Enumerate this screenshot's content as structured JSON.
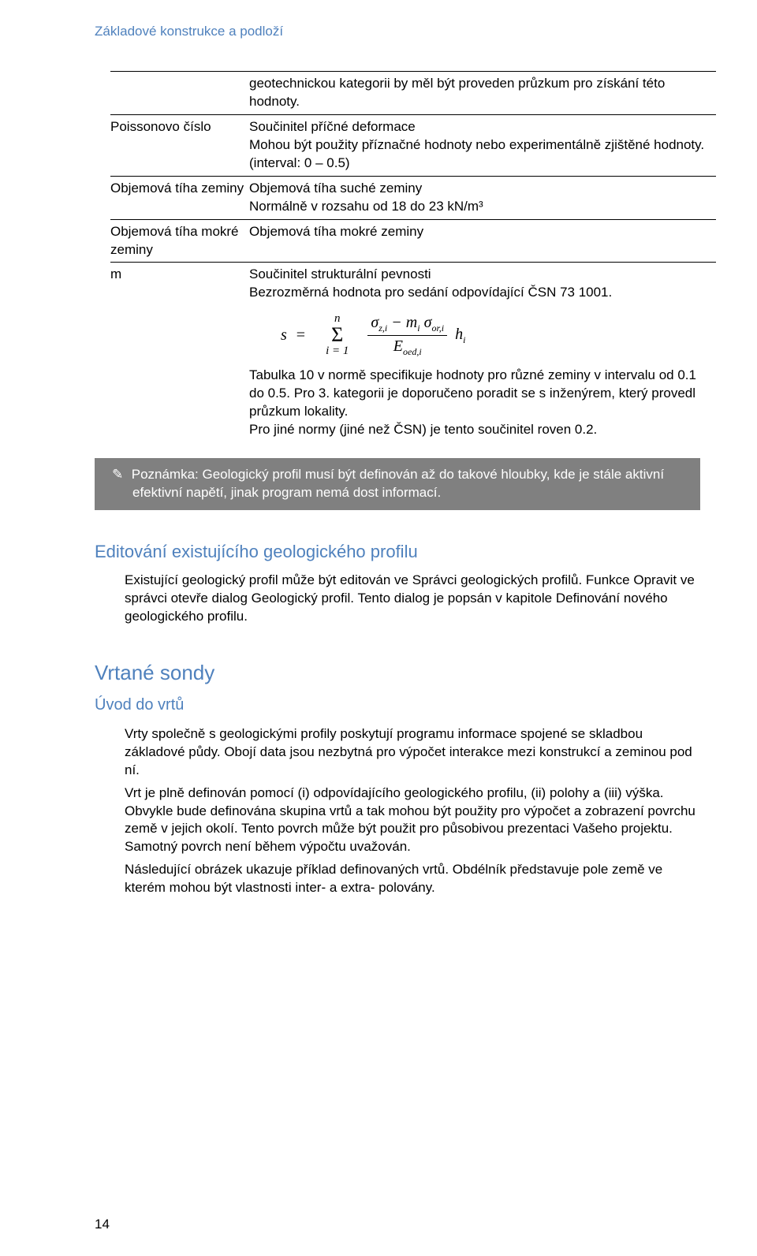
{
  "header": "Základové konstrukce a podloží",
  "table": {
    "rows": [
      {
        "label": "",
        "desc": "geotechnickou kategorii by měl být proveden průzkum pro získání této hodnoty."
      },
      {
        "label": "Poissonovo číslo",
        "desc": "Součinitel příčné deformace\nMohou být použity příznačné hodnoty nebo experimentálně zjištěné hodnoty.\n(interval: 0 – 0.5)"
      },
      {
        "label": "Objemová tíha zeminy",
        "desc": "Objemová tíha suché zeminy\nNormálně v rozsahu od 18 do 23 kN/m³"
      },
      {
        "label": "Objemová tíha mokré zeminy",
        "desc": "Objemová tíha mokré zeminy"
      },
      {
        "label": "m",
        "desc": "Součinitel strukturální pevnosti\nBezrozměrná hodnota pro sedání odpovídající ČSN 73 1001."
      }
    ],
    "formula": {
      "lhs": "s",
      "sum_top": "n",
      "sum_bottom": "i = 1",
      "frac_num": "σ_{z,i} − m_i · σ_{or,i}",
      "frac_den": "E_{oed,i}",
      "tail": "h_i"
    },
    "postdesc": "Tabulka 10 v normě specifikuje hodnoty pro různé zeminy v intervalu od 0.1 do 0.5. Pro 3. kategorii je doporučeno poradit se s inženýrem, který provedl průzkum lokality.\nPro jiné normy (jiné než ČSN) je tento součinitel roven 0.2."
  },
  "note": {
    "icon": "✎",
    "text": "Poznámka: Geologický profil musí být definován až do takové hloubky, kde je stále aktivní efektivní napětí, jinak program nemá dost informací."
  },
  "section_edit": {
    "title": "Editování existujícího geologického profilu",
    "p1": "Existující geologický profil může být editován ve Správci geologických profilů. Funkce Opravit ve správci otevře dialog Geologický profil. Tento dialog je popsán v kapitole Definování nového geologického profilu."
  },
  "section_boreholes": {
    "title": "Vrtané sondy",
    "sub": "Úvod do vrtů",
    "p1": "Vrty společně s geologickými profily poskytují programu informace spojené se skladbou základové půdy. Obojí data jsou nezbytná pro výpočet interakce mezi konstrukcí a zeminou pod ní.",
    "p2": "Vrt je plně definován pomocí (i) odpovídajícího geologického profilu, (ii) polohy a (iii) výška. Obvykle bude definována skupina vrtů a tak mohou být použity pro výpočet a zobrazení povrchu země v jejich okolí. Tento povrch může být použit pro působivou prezentaci Vašeho projektu. Samotný povrch není během výpočtu uvažován.",
    "p3": "Následující obrázek ukazuje příklad definovaných vrtů. Obdélník představuje pole země ve kterém mohou být vlastnosti inter- a extra- polovány."
  },
  "pagenum": "14"
}
